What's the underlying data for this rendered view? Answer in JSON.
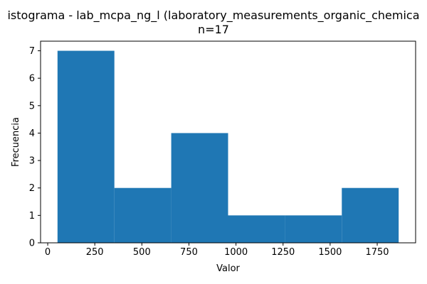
{
  "chart_data": {
    "type": "bar",
    "title": "istograma - lab_mcpa_ng_l (laboratory_measurements_organic_chemica",
    "subtitle": "n=17",
    "xlabel": "Valor",
    "ylabel": "Frecuencia",
    "bin_edges": [
      52,
      354,
      656,
      958,
      1260,
      1562,
      1864
    ],
    "values": [
      7,
      2,
      4,
      1,
      1,
      2
    ],
    "xlim": [
      -38,
      1954
    ],
    "ylim": [
      0,
      7.35
    ],
    "xticks": [
      0,
      250,
      500,
      750,
      1000,
      1250,
      1500,
      1750
    ],
    "yticks": [
      0,
      1,
      2,
      3,
      4,
      5,
      6,
      7
    ],
    "bar_color": "#1f77b4",
    "grid": false
  }
}
